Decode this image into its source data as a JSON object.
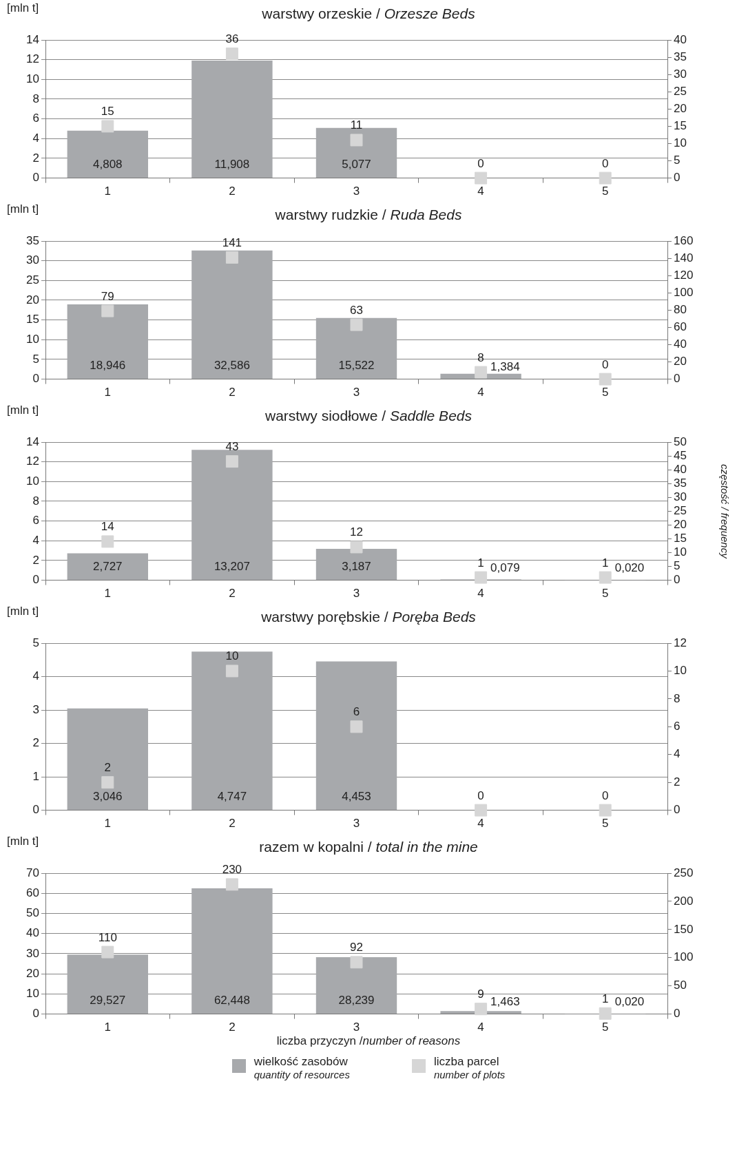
{
  "chart_data": [
    {
      "type": "bar",
      "title": "warstwy orzeskie / Orzesze Beds",
      "ylabel": "[mln t]",
      "categories": [
        "1",
        "2",
        "3",
        "4",
        "5"
      ],
      "ylim": [
        0,
        14
      ],
      "yticks": [
        0,
        2,
        4,
        6,
        8,
        10,
        12,
        14
      ],
      "y2lim": [
        0,
        40
      ],
      "y2ticks": [
        0,
        5,
        10,
        15,
        20,
        25,
        30,
        35,
        40
      ],
      "grid": "y",
      "legend": false,
      "series": [
        {
          "color": "#a7a9ac",
          "values": [
            4.808,
            11.908,
            5.077,
            null,
            null
          ],
          "value_labels": [
            "4,808",
            "11,908",
            "5,077",
            null,
            null
          ]
        },
        {
          "type": "scatter",
          "axis": "y2",
          "marker": "square",
          "color": "#d6d6d6",
          "x": [
            "1",
            "2",
            "3",
            "4",
            "5"
          ],
          "values": [
            15,
            36,
            11,
            0,
            0
          ],
          "value_labels": [
            "15",
            "36",
            "11",
            "0",
            "0"
          ]
        }
      ]
    },
    {
      "type": "bar",
      "title": "warstwy rudzkie / Ruda Beds",
      "ylabel": "[mln t]",
      "categories": [
        "1",
        "2",
        "3",
        "4",
        "5"
      ],
      "ylim": [
        0,
        35
      ],
      "yticks": [
        0,
        5,
        10,
        15,
        20,
        25,
        30,
        35
      ],
      "y2lim": [
        0,
        160
      ],
      "y2ticks": [
        0,
        20,
        40,
        60,
        80,
        100,
        120,
        140,
        160
      ],
      "grid": "y",
      "legend": false,
      "series": [
        {
          "color": "#a7a9ac",
          "values": [
            18.946,
            32.586,
            15.522,
            1.384,
            null
          ],
          "value_labels": [
            "18,946",
            "32,586",
            "15,522",
            "1,384",
            null
          ]
        },
        {
          "type": "scatter",
          "axis": "y2",
          "marker": "square",
          "color": "#d6d6d6",
          "x": [
            "1",
            "2",
            "3",
            "4",
            "5"
          ],
          "values": [
            79,
            141,
            63,
            8,
            0
          ],
          "value_labels": [
            "79",
            "141",
            "63",
            "8",
            "0"
          ]
        }
      ]
    },
    {
      "type": "bar",
      "title": "warstwy siodłowe / Saddle Beds",
      "ylabel": "[mln t]",
      "y2label": "częstość / frequency",
      "categories": [
        "1",
        "2",
        "3",
        "4",
        "5"
      ],
      "ylim": [
        0,
        14
      ],
      "yticks": [
        0,
        2,
        4,
        6,
        8,
        10,
        12,
        14
      ],
      "y2lim": [
        0,
        50
      ],
      "y2ticks": [
        0,
        5,
        10,
        15,
        20,
        25,
        30,
        35,
        40,
        45,
        50
      ],
      "grid": "y",
      "legend": false,
      "series": [
        {
          "color": "#a7a9ac",
          "values": [
            2.727,
            13.207,
            3.187,
            0.079,
            0.02
          ],
          "value_labels": [
            "2,727",
            "13,207",
            "3,187",
            "0,079",
            "0,020"
          ]
        },
        {
          "type": "scatter",
          "axis": "y2",
          "marker": "square",
          "color": "#d6d6d6",
          "x": [
            "1",
            "2",
            "3",
            "4",
            "5"
          ],
          "values": [
            14,
            43,
            12,
            1,
            1
          ],
          "value_labels": [
            "14",
            "43",
            "12",
            "1",
            "1"
          ]
        }
      ]
    },
    {
      "type": "bar",
      "title": "warstwy porębskie / Poręba Beds",
      "ylabel": "[mln t]",
      "categories": [
        "1",
        "2",
        "3",
        "4",
        "5"
      ],
      "ylim": [
        0,
        5
      ],
      "yticks": [
        0,
        1,
        2,
        3,
        4,
        5
      ],
      "y2lim": [
        0,
        12
      ],
      "y2ticks": [
        0,
        2,
        4,
        6,
        8,
        10,
        12
      ],
      "grid": "y",
      "legend": false,
      "series": [
        {
          "color": "#a7a9ac",
          "values": [
            3.046,
            4.747,
            4.453,
            null,
            null
          ],
          "value_labels": [
            "3,046",
            "4,747",
            "4,453",
            null,
            null
          ]
        },
        {
          "type": "scatter",
          "axis": "y2",
          "marker": "square",
          "color": "#d6d6d6",
          "x": [
            "1",
            "2",
            "3",
            "4",
            "5"
          ],
          "values": [
            2,
            10,
            6,
            0,
            0
          ],
          "value_labels": [
            "2",
            "10",
            "6",
            "0",
            "0"
          ]
        }
      ]
    },
    {
      "type": "bar",
      "title": "razem w kopalni / total in the mine",
      "ylabel": "[mln t]",
      "xlabel": "liczba przyczyn /number of reasons",
      "categories": [
        "1",
        "2",
        "3",
        "4",
        "5"
      ],
      "ylim": [
        0,
        70
      ],
      "yticks": [
        0,
        10,
        20,
        30,
        40,
        50,
        60,
        70
      ],
      "y2lim": [
        0,
        250
      ],
      "y2ticks": [
        0,
        50,
        100,
        150,
        200,
        250
      ],
      "grid": "y",
      "legend": "bottom",
      "series": [
        {
          "name": "wielkość zasobów\nquantity of resources",
          "color": "#a7a9ac",
          "values": [
            29.527,
            62.448,
            28.239,
            1.463,
            0.02
          ],
          "value_labels": [
            "29,527",
            "62,448",
            "28,239",
            "1,463",
            "0,020"
          ]
        },
        {
          "type": "scatter",
          "axis": "y2",
          "marker": "square",
          "name": "liczba parcel\nnumber of plots",
          "color": "#d6d6d6",
          "x": [
            "1",
            "2",
            "3",
            "4",
            "5"
          ],
          "values": [
            110,
            230,
            92,
            9,
            1
          ],
          "value_labels": [
            "110",
            "230",
            "92",
            "9",
            "1"
          ]
        }
      ]
    }
  ]
}
